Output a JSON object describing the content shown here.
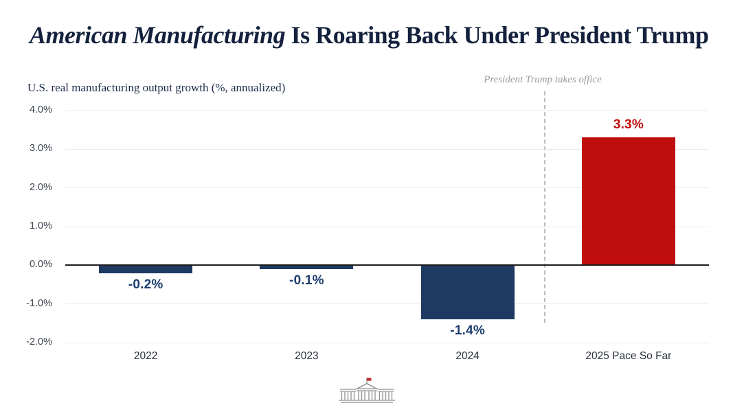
{
  "header": {
    "title_italic": "American Manufacturing",
    "title_rest": " Is Roaring Back Under President Trump"
  },
  "chart_data": {
    "type": "bar",
    "title": "American Manufacturing Is Roaring Back Under President Trump",
    "subtitle": "U.S. real manufacturing output growth (%, annualized)",
    "categories": [
      "2022",
      "2023",
      "2024",
      "2025 Pace So Far"
    ],
    "values": [
      -0.2,
      -0.1,
      -1.4,
      3.3
    ],
    "value_labels": [
      "-0.2%",
      "-0.1%",
      "-1.4%",
      "3.3%"
    ],
    "bar_colors": [
      "#1e3a63",
      "#1e3a63",
      "#1e3a63",
      "#c00d0d"
    ],
    "value_label_colors": [
      "#1c3e6e",
      "#1c3e6e",
      "#1c3e6e",
      "#c00d0d"
    ],
    "ylim": [
      -2,
      4
    ],
    "yticks": [
      4,
      3,
      2,
      1,
      0,
      -1,
      -2
    ],
    "ytick_labels": [
      "4.0%",
      "3.0%",
      "2.0%",
      "1.0%",
      "0.0%",
      "-1.0%",
      "-2.0%"
    ],
    "annotation": {
      "text": "President Trump takes office"
    },
    "grid": "horizontal",
    "legend": "none"
  },
  "footer": {
    "logo": "white-house-icon"
  },
  "colors": {
    "navy_bar": "#1e3a63",
    "red_bar": "#c00d0d",
    "title_navy": "#14213d",
    "annotation_gray": "#999999",
    "gridline": "#eaeaea",
    "zero_line": "#1c1c1c"
  }
}
